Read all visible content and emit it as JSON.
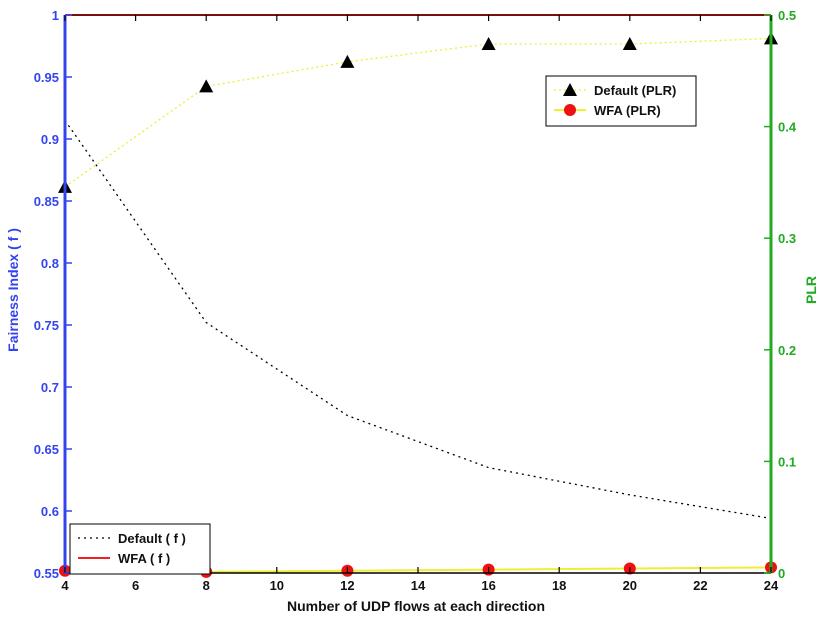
{
  "chart_data": {
    "type": "line",
    "title": "",
    "xlabel": "Number of UDP flows at each direction",
    "ylabel_left": "Fairness Index ( f )",
    "ylabel_right": "PLR",
    "xlim": [
      4,
      24
    ],
    "ylim_left": [
      0.55,
      1.0
    ],
    "ylim_right": [
      0,
      0.5
    ],
    "x_ticks": [
      "4",
      "6",
      "8",
      "10",
      "12",
      "14",
      "16",
      "18",
      "20",
      "22",
      "24"
    ],
    "y_left_ticks": [
      "0.55",
      "0.6",
      "0.65",
      "0.7",
      "0.75",
      "0.8",
      "0.85",
      "0.9",
      "0.95",
      "1"
    ],
    "y_right_ticks": [
      "0",
      "0.1",
      "0.2",
      "0.3",
      "0.4",
      "0.5"
    ],
    "grid": false,
    "colors": {
      "left_axis": "#3344ee",
      "right_axis": "#22aa22",
      "default_f": "#000000",
      "wfa_f": "#ee2222",
      "default_plr_line": "#eeee33",
      "default_plr_marker": "#000000",
      "wfa_plr_line": "#eeee33",
      "wfa_plr_marker": "#ee1111"
    },
    "series": [
      {
        "name": "Default ( f )",
        "axis": "left",
        "style": "dotted",
        "marker": "none",
        "x": [
          4,
          8,
          12,
          16,
          20,
          24
        ],
        "values": [
          0.915,
          0.752,
          0.677,
          0.635,
          0.613,
          0.594
        ]
      },
      {
        "name": "WFA ( f )",
        "axis": "left",
        "style": "solid",
        "marker": "none",
        "x": [
          4,
          8,
          12,
          16,
          20,
          24
        ],
        "values": [
          1.0,
          1.0,
          1.0,
          1.0,
          1.0,
          1.0
        ]
      },
      {
        "name": "Default (PLR)",
        "axis": "right",
        "style": "dotted",
        "marker": "triangle",
        "x": [
          4,
          8,
          12,
          16,
          20,
          24
        ],
        "values": [
          0.346,
          0.436,
          0.458,
          0.474,
          0.474,
          0.479
        ]
      },
      {
        "name": "WFA (PLR)",
        "axis": "right",
        "style": "solid",
        "marker": "circle",
        "x": [
          4,
          8,
          12,
          16,
          20,
          24
        ],
        "values": [
          0.002,
          0.001,
          0.002,
          0.003,
          0.004,
          0.005
        ]
      }
    ],
    "legends": [
      {
        "placement": "top-right",
        "entries": [
          "Default (PLR)",
          "WFA (PLR)"
        ]
      },
      {
        "placement": "bottom-left",
        "entries": [
          "Default ( f )",
          "WFA ( f )"
        ]
      }
    ]
  }
}
